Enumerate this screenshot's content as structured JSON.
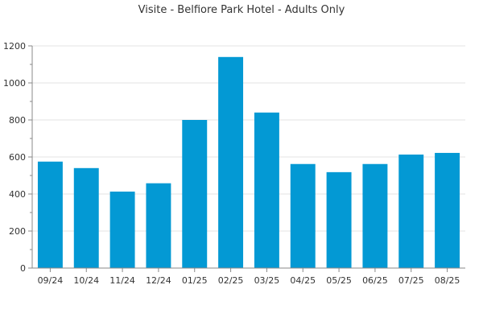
{
  "chart_data": {
    "type": "bar",
    "title": "Visite - Belfiore Park Hotel - Adults Only",
    "xlabel": "",
    "ylabel": "",
    "categories": [
      "09/24",
      "10/24",
      "11/24",
      "12/24",
      "01/25",
      "02/25",
      "03/25",
      "04/25",
      "05/25",
      "06/25",
      "07/25",
      "08/25"
    ],
    "values": [
      575,
      540,
      413,
      458,
      800,
      1140,
      840,
      562,
      518,
      562,
      613,
      622
    ],
    "ylim": [
      0,
      1200
    ],
    "yticks": [
      0,
      200,
      400,
      600,
      800,
      1000,
      1200
    ],
    "grid": true,
    "legend": "none",
    "bar_color": "#0399d4"
  }
}
